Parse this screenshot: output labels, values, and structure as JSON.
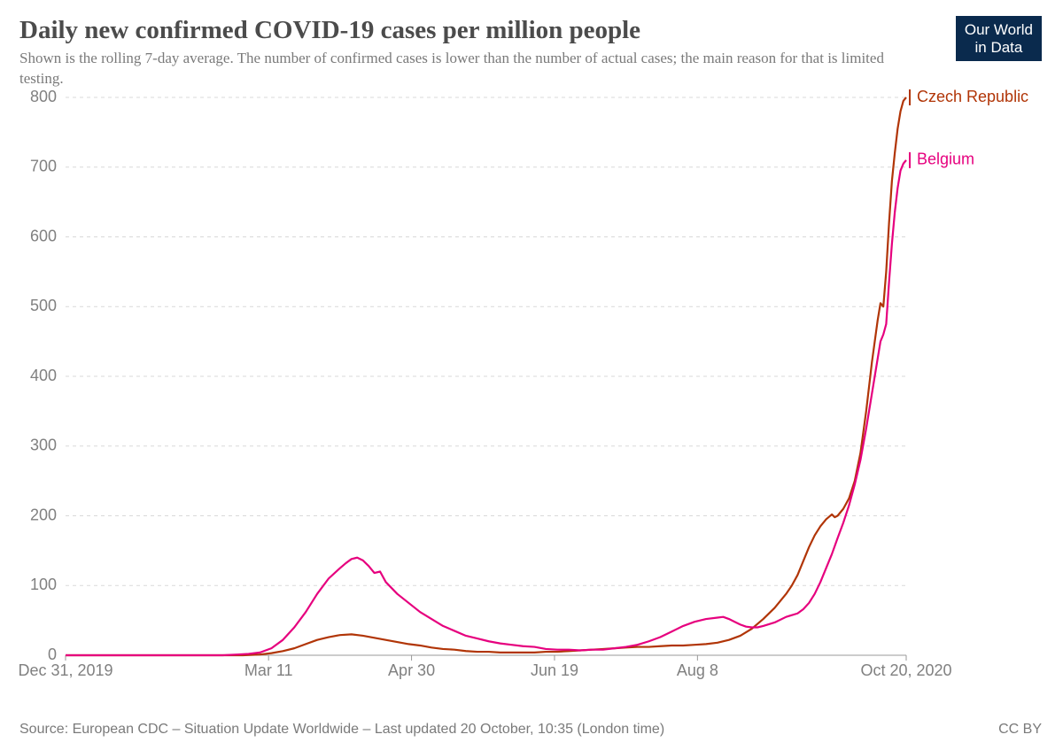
{
  "header": {
    "title": "Daily new confirmed COVID-19 cases per million people",
    "subtitle": "Shown is the rolling 7-day average. The number of confirmed cases is lower than the number of actual cases; the main reason for that is limited testing.",
    "logo_line1": "Our World",
    "logo_line2": "in Data",
    "logo_bg": "#0a2a4d",
    "logo_fg": "#ffffff",
    "title_color": "#4b4b4b",
    "subtitle_color": "#7a7a7a",
    "title_fontsize": 29,
    "subtitle_fontsize": 17
  },
  "chart": {
    "type": "line",
    "background_color": "#ffffff",
    "grid_color": "#d9d9d9",
    "axis_color": "#999999",
    "tick_label_color": "#808080",
    "tick_fontsize": 18,
    "line_width": 2.2,
    "x_domain": [
      0,
      294
    ],
    "y_domain": [
      0,
      800
    ],
    "y_ticks": [
      0,
      100,
      200,
      300,
      400,
      500,
      600,
      700,
      800
    ],
    "x_ticks": [
      {
        "pos": 0,
        "label": "Dec 31, 2019",
        "anchor": "start"
      },
      {
        "pos": 71,
        "label": "Mar 11",
        "anchor": "middle"
      },
      {
        "pos": 121,
        "label": "Apr 30",
        "anchor": "middle"
      },
      {
        "pos": 171,
        "label": "Jun 19",
        "anchor": "middle"
      },
      {
        "pos": 221,
        "label": "Aug 8",
        "anchor": "middle"
      },
      {
        "pos": 294,
        "label": "Oct 20, 2020",
        "anchor": "middle"
      }
    ],
    "series": [
      {
        "name": "Czech Republic",
        "color": "#b13507",
        "label_y": 800,
        "points": [
          [
            0,
            0
          ],
          [
            40,
            0
          ],
          [
            55,
            0
          ],
          [
            62,
            0
          ],
          [
            68,
            1
          ],
          [
            72,
            3
          ],
          [
            76,
            6
          ],
          [
            80,
            10
          ],
          [
            84,
            16
          ],
          [
            88,
            22
          ],
          [
            92,
            26
          ],
          [
            96,
            29
          ],
          [
            100,
            30
          ],
          [
            104,
            28
          ],
          [
            108,
            25
          ],
          [
            112,
            22
          ],
          [
            116,
            19
          ],
          [
            120,
            16
          ],
          [
            124,
            14
          ],
          [
            128,
            11
          ],
          [
            132,
            9
          ],
          [
            136,
            8
          ],
          [
            140,
            6
          ],
          [
            144,
            5
          ],
          [
            148,
            5
          ],
          [
            152,
            4
          ],
          [
            156,
            4
          ],
          [
            160,
            4
          ],
          [
            164,
            4
          ],
          [
            168,
            5
          ],
          [
            172,
            5
          ],
          [
            176,
            6
          ],
          [
            180,
            7
          ],
          [
            184,
            8
          ],
          [
            188,
            9
          ],
          [
            192,
            10
          ],
          [
            196,
            11
          ],
          [
            200,
            12
          ],
          [
            204,
            12
          ],
          [
            208,
            13
          ],
          [
            212,
            14
          ],
          [
            216,
            14
          ],
          [
            220,
            15
          ],
          [
            224,
            16
          ],
          [
            228,
            18
          ],
          [
            232,
            22
          ],
          [
            236,
            28
          ],
          [
            240,
            38
          ],
          [
            244,
            52
          ],
          [
            248,
            68
          ],
          [
            252,
            88
          ],
          [
            254,
            100
          ],
          [
            256,
            115
          ],
          [
            258,
            135
          ],
          [
            260,
            155
          ],
          [
            262,
            172
          ],
          [
            264,
            185
          ],
          [
            266,
            195
          ],
          [
            268,
            202
          ],
          [
            269,
            198
          ],
          [
            270,
            200
          ],
          [
            272,
            210
          ],
          [
            274,
            225
          ],
          [
            276,
            250
          ],
          [
            278,
            290
          ],
          [
            280,
            350
          ],
          [
            282,
            420
          ],
          [
            284,
            480
          ],
          [
            285,
            505
          ],
          [
            286,
            500
          ],
          [
            287,
            550
          ],
          [
            288,
            620
          ],
          [
            289,
            680
          ],
          [
            290,
            720
          ],
          [
            291,
            755
          ],
          [
            292,
            780
          ],
          [
            293,
            795
          ],
          [
            294,
            800
          ]
        ]
      },
      {
        "name": "Belgium",
        "color": "#e6007e",
        "label_y": 710,
        "points": [
          [
            0,
            0
          ],
          [
            40,
            0
          ],
          [
            55,
            0
          ],
          [
            60,
            1
          ],
          [
            64,
            2
          ],
          [
            68,
            4
          ],
          [
            72,
            10
          ],
          [
            76,
            22
          ],
          [
            80,
            40
          ],
          [
            84,
            62
          ],
          [
            88,
            88
          ],
          [
            92,
            110
          ],
          [
            96,
            125
          ],
          [
            98,
            132
          ],
          [
            100,
            138
          ],
          [
            102,
            140
          ],
          [
            104,
            136
          ],
          [
            106,
            128
          ],
          [
            108,
            118
          ],
          [
            110,
            120
          ],
          [
            112,
            105
          ],
          [
            116,
            88
          ],
          [
            120,
            75
          ],
          [
            124,
            62
          ],
          [
            128,
            52
          ],
          [
            132,
            42
          ],
          [
            136,
            35
          ],
          [
            140,
            28
          ],
          [
            144,
            24
          ],
          [
            148,
            20
          ],
          [
            152,
            17
          ],
          [
            156,
            15
          ],
          [
            160,
            13
          ],
          [
            164,
            12
          ],
          [
            168,
            9
          ],
          [
            172,
            8
          ],
          [
            176,
            8
          ],
          [
            180,
            7
          ],
          [
            184,
            8
          ],
          [
            188,
            8
          ],
          [
            192,
            10
          ],
          [
            196,
            12
          ],
          [
            200,
            15
          ],
          [
            204,
            20
          ],
          [
            208,
            26
          ],
          [
            212,
            34
          ],
          [
            216,
            42
          ],
          [
            220,
            48
          ],
          [
            224,
            52
          ],
          [
            228,
            54
          ],
          [
            230,
            55
          ],
          [
            232,
            52
          ],
          [
            234,
            48
          ],
          [
            236,
            44
          ],
          [
            238,
            41
          ],
          [
            240,
            40
          ],
          [
            242,
            40
          ],
          [
            244,
            42
          ],
          [
            248,
            47
          ],
          [
            252,
            55
          ],
          [
            256,
            60
          ],
          [
            258,
            66
          ],
          [
            260,
            75
          ],
          [
            262,
            88
          ],
          [
            264,
            105
          ],
          [
            266,
            125
          ],
          [
            268,
            145
          ],
          [
            270,
            168
          ],
          [
            272,
            190
          ],
          [
            274,
            215
          ],
          [
            276,
            245
          ],
          [
            278,
            280
          ],
          [
            280,
            325
          ],
          [
            282,
            375
          ],
          [
            284,
            425
          ],
          [
            285,
            450
          ],
          [
            286,
            460
          ],
          [
            287,
            475
          ],
          [
            288,
            535
          ],
          [
            289,
            590
          ],
          [
            290,
            635
          ],
          [
            291,
            670
          ],
          [
            292,
            695
          ],
          [
            293,
            705
          ],
          [
            294,
            710
          ]
        ]
      }
    ]
  },
  "footer": {
    "source": "Source: European CDC – Situation Update Worldwide – Last updated 20 October, 10:35 (London time)",
    "license": "CC BY",
    "color": "#7a7a7a",
    "fontsize": 16
  }
}
